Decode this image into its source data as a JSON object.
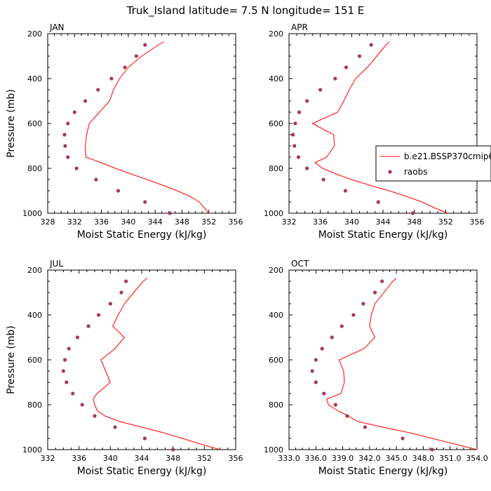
{
  "figure": {
    "title": "Truk_Island  latitude= 7.5 N longitude= 151 E",
    "legend": {
      "model_label": "b.e21.BSSP370cmip6",
      "obs_label": "raobs",
      "model_color": "#ff0000",
      "obs_color": "#a33a5c"
    }
  },
  "chart_data": [
    {
      "type": "line",
      "panel": "JAN",
      "title": "JAN",
      "xlabel": "Moist Static Energy (kJ/kg)",
      "ylabel": "Pressure (mb)",
      "xlim": [
        328,
        356
      ],
      "ylim": [
        1000,
        200
      ],
      "xticks": [
        328,
        332,
        336,
        340,
        344,
        348,
        352,
        356
      ],
      "xtick_labels": [
        "328",
        "332",
        "336",
        "340",
        "344",
        "348",
        "352",
        "356"
      ],
      "yticks": [
        200,
        400,
        600,
        800,
        1000
      ],
      "ytick_labels": [
        "200",
        "400",
        "600",
        "800",
        "1000"
      ],
      "legend_position": "none",
      "series": [
        {
          "name": "b.e21.BSSP370cmip6",
          "kind": "line",
          "pressure": [
            1000,
            975,
            950,
            925,
            900,
            875,
            850,
            825,
            800,
            775,
            750,
            700,
            650,
            600,
            550,
            500,
            450,
            400,
            350,
            300,
            250,
            236
          ],
          "mse": [
            352.0,
            351.3,
            350.6,
            349.2,
            347.3,
            345.1,
            342.8,
            340.4,
            338.1,
            336.0,
            333.7,
            333.6,
            333.8,
            334.2,
            335.7,
            337.2,
            337.8,
            338.7,
            340.0,
            342.0,
            344.5,
            345.3
          ]
        },
        {
          "name": "raobs",
          "kind": "points",
          "pressure": [
            1000,
            950,
            900,
            850,
            800,
            750,
            700,
            650,
            600,
            550,
            500,
            450,
            400,
            350,
            300,
            250
          ],
          "mse": [
            346.2,
            342.5,
            338.5,
            335.2,
            332.3,
            331.0,
            330.6,
            330.5,
            331.0,
            332.0,
            333.6,
            335.5,
            337.5,
            339.5,
            341.2,
            342.5
          ]
        }
      ]
    },
    {
      "type": "line",
      "panel": "APR",
      "title": "APR",
      "xlabel": "Moist Static Energy (kJ/kg)",
      "ylabel": "",
      "xlim": [
        332,
        356
      ],
      "ylim": [
        1000,
        200
      ],
      "xticks": [
        332,
        336,
        340,
        344,
        348,
        352,
        356
      ],
      "xtick_labels": [
        "332",
        "336",
        "340",
        "344",
        "348",
        "352",
        "356"
      ],
      "yticks": [
        200,
        400,
        600,
        800,
        1000
      ],
      "ytick_labels": [
        "200",
        "400",
        "600",
        "800",
        "1000"
      ],
      "legend_position": "right",
      "series": [
        {
          "name": "b.e21.BSSP370cmip6",
          "kind": "line",
          "pressure": [
            1000,
            975,
            950,
            925,
            900,
            875,
            850,
            825,
            800,
            775,
            750,
            700,
            650,
            600,
            550,
            500,
            450,
            400,
            350,
            300,
            250,
            236
          ],
          "mse": [
            352.3,
            350.5,
            349.0,
            347.0,
            344.8,
            342.3,
            340.0,
            338.0,
            336.3,
            335.3,
            336.8,
            337.8,
            337.7,
            335.0,
            338.2,
            339.0,
            339.7,
            340.5,
            342.0,
            343.2,
            344.4,
            344.8
          ]
        },
        {
          "name": "raobs",
          "kind": "points",
          "pressure": [
            1000,
            950,
            900,
            850,
            800,
            750,
            700,
            650,
            600,
            550,
            500,
            450,
            400,
            350,
            300,
            250
          ],
          "mse": [
            347.8,
            343.4,
            339.2,
            336.4,
            334.3,
            333.2,
            332.7,
            332.5,
            332.8,
            333.3,
            334.3,
            336.0,
            337.9,
            339.3,
            341.0,
            342.5
          ]
        }
      ]
    },
    {
      "type": "line",
      "panel": "JUL",
      "title": "JUL",
      "xlabel": "Moist Static Energy (kJ/kg)",
      "ylabel": "Pressure (mb)",
      "xlim": [
        332,
        356
      ],
      "ylim": [
        1000,
        200
      ],
      "xticks": [
        332,
        336,
        340,
        344,
        348,
        352,
        356
      ],
      "xtick_labels": [
        "332",
        "336",
        "340",
        "344",
        "348",
        "352",
        "356"
      ],
      "yticks": [
        200,
        400,
        600,
        800,
        1000
      ],
      "ytick_labels": [
        "200",
        "400",
        "600",
        "800",
        "1000"
      ],
      "legend_position": "none",
      "series": [
        {
          "name": "b.e21.BSSP370cmip6",
          "kind": "line",
          "pressure": [
            1000,
            975,
            950,
            925,
            900,
            875,
            850,
            825,
            800,
            775,
            750,
            700,
            650,
            600,
            550,
            500,
            450,
            400,
            350,
            300,
            250,
            236
          ],
          "mse": [
            354.0,
            351.5,
            349.2,
            346.8,
            344.0,
            341.2,
            339.3,
            338.3,
            338.0,
            337.8,
            338.3,
            340.0,
            339.4,
            338.8,
            340.6,
            341.8,
            340.3,
            341.0,
            341.8,
            343.0,
            344.2,
            344.7
          ]
        },
        {
          "name": "raobs",
          "kind": "points",
          "pressure": [
            1000,
            950,
            900,
            850,
            800,
            750,
            700,
            650,
            600,
            550,
            500,
            450,
            400,
            350,
            300,
            250
          ],
          "mse": [
            348.0,
            344.4,
            340.6,
            338.0,
            336.4,
            335.2,
            334.4,
            334.0,
            334.2,
            334.7,
            335.8,
            337.2,
            338.5,
            340.0,
            341.4,
            342.0
          ]
        }
      ]
    },
    {
      "type": "line",
      "panel": "OCT",
      "title": "OCT",
      "xlabel": "Moist Static Energy (kJ/kg)",
      "ylabel": "",
      "xlim": [
        333,
        354
      ],
      "ylim": [
        1000,
        200
      ],
      "xticks": [
        333,
        336,
        339,
        342,
        345,
        348,
        351,
        354
      ],
      "xtick_labels": [
        "333.0",
        "336.0",
        "339.0",
        "342.0",
        "345.0",
        "348.0",
        "351.0",
        "354.0"
      ],
      "yticks": [
        200,
        400,
        600,
        800,
        1000
      ],
      "ytick_labels": [
        "200",
        "400",
        "600",
        "800",
        "1000"
      ],
      "legend_position": "none",
      "series": [
        {
          "name": "b.e21.BSSP370cmip6",
          "kind": "line",
          "pressure": [
            1000,
            975,
            950,
            925,
            900,
            875,
            850,
            825,
            800,
            775,
            750,
            700,
            650,
            600,
            550,
            500,
            450,
            400,
            350,
            300,
            250,
            236
          ],
          "mse": [
            354.0,
            351.5,
            349.0,
            346.5,
            343.5,
            340.7,
            339.6,
            338.4,
            337.4,
            337.2,
            338.8,
            339.2,
            339.1,
            338.6,
            341.4,
            342.6,
            342.0,
            342.2,
            342.6,
            343.6,
            344.6,
            345.0
          ]
        },
        {
          "name": "raobs",
          "kind": "points",
          "pressure": [
            1000,
            950,
            900,
            850,
            800,
            750,
            700,
            650,
            600,
            550,
            500,
            450,
            400,
            350,
            300,
            250
          ],
          "mse": [
            349.0,
            345.7,
            341.5,
            339.5,
            338.2,
            336.9,
            336.0,
            335.6,
            336.0,
            336.7,
            337.8,
            338.9,
            340.2,
            341.3,
            342.6,
            343.4
          ]
        }
      ]
    }
  ]
}
